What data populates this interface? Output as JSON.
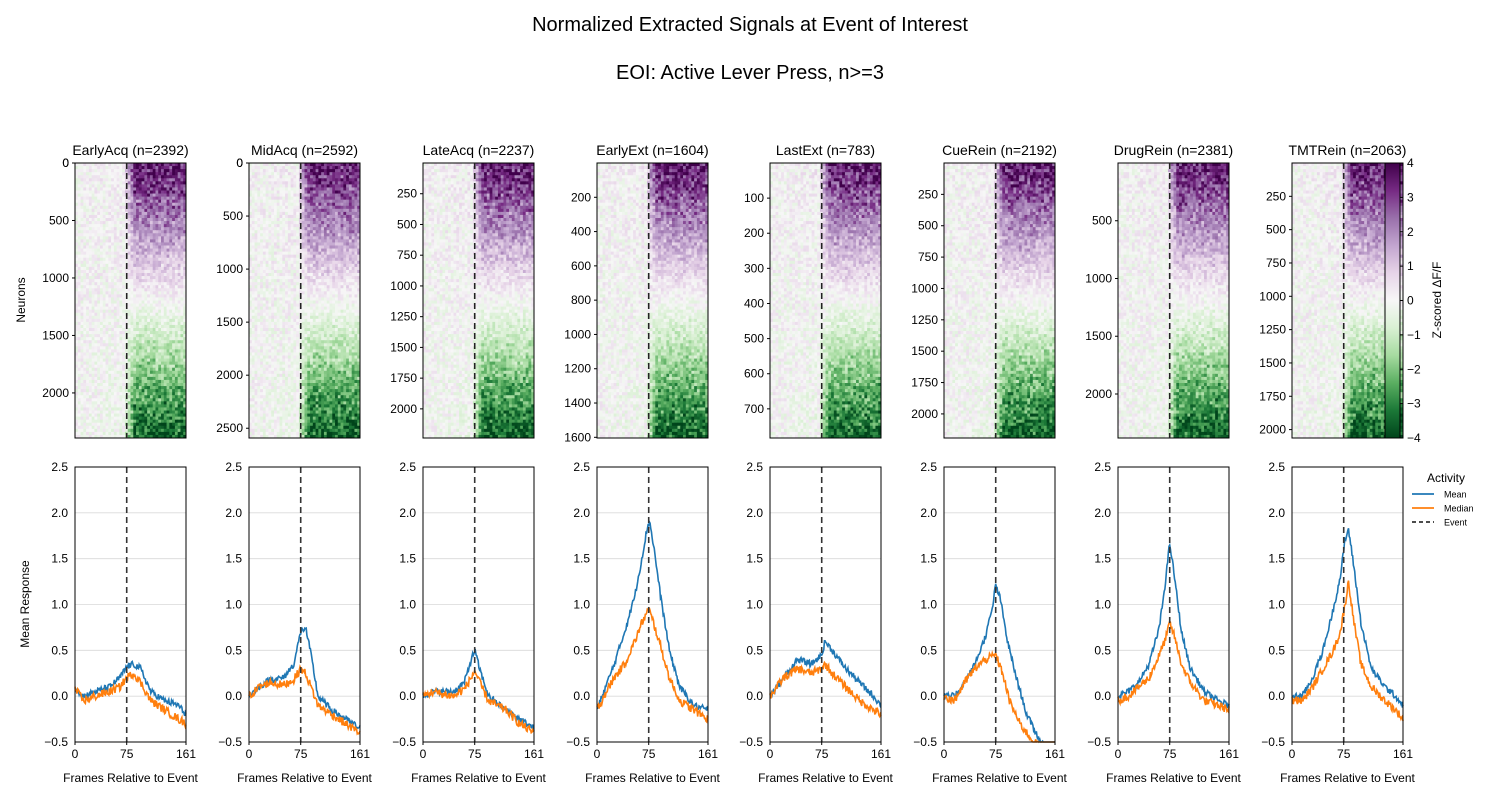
{
  "figure": {
    "title": "Normalized Extracted Signals at Event of Interest",
    "subtitle": "EOI: Active Lever Press, n>=3"
  },
  "chart_data": {
    "type": "heatmap",
    "heatmap": {
      "ylabel": "Neurons",
      "colorbar_label": "Z-scored ΔF/F",
      "colorbar_ticks": [
        "4",
        "3",
        "2",
        "1",
        "0",
        "−1",
        "−2",
        "−3",
        "−4"
      ],
      "color_range": [
        -4,
        4
      ],
      "colormap": [
        "#40004b",
        "#762a83",
        "#9970ab",
        "#c2a5cf",
        "#e7d4e8",
        "#f7f7f7",
        "#d9f0d3",
        "#a6dba0",
        "#5aae61",
        "#1b7837",
        "#00441b"
      ],
      "event_frame": 75,
      "frames": 161
    },
    "line": {
      "xlabel": "Frames Relative to Event",
      "ylabel": "Mean Response",
      "ylim": [
        -0.5,
        2.5
      ],
      "yticks": [
        "2.5",
        "2.0",
        "1.5",
        "1.0",
        "0.5",
        "0.0",
        "−0.5"
      ],
      "xticks": [
        "0",
        "75",
        "161"
      ],
      "xlim": [
        0,
        161
      ],
      "grid": true,
      "legend_title": "Activity",
      "legend_position": "right",
      "legend": [
        {
          "label": "Mean",
          "color": "#1f77b4",
          "style": "solid"
        },
        {
          "label": "Median",
          "color": "#ff7f0e",
          "style": "solid"
        },
        {
          "label": "Event",
          "color": "#333333",
          "style": "dashed"
        }
      ],
      "colors": {
        "mean": "#1f77b4",
        "median": "#ff7f0e",
        "event": "#333333"
      }
    },
    "panels": [
      {
        "title": "EarlyAcq (n=2392)",
        "n": 2392,
        "yticks": [
          "0",
          "500",
          "1000",
          "1500",
          "2000"
        ],
        "ytick_values": [
          0,
          500,
          1000,
          1500,
          2000
        ],
        "mean_kp": [
          [
            0,
            0.1
          ],
          [
            12,
            0.0
          ],
          [
            30,
            0.05
          ],
          [
            50,
            0.1
          ],
          [
            65,
            0.2
          ],
          [
            75,
            0.32
          ],
          [
            85,
            0.35
          ],
          [
            95,
            0.3
          ],
          [
            110,
            0.05
          ],
          [
            130,
            -0.05
          ],
          [
            150,
            -0.1
          ],
          [
            161,
            -0.2
          ]
        ],
        "median_kp": [
          [
            0,
            0.08
          ],
          [
            12,
            -0.05
          ],
          [
            30,
            0.0
          ],
          [
            50,
            0.05
          ],
          [
            65,
            0.1
          ],
          [
            75,
            0.2
          ],
          [
            85,
            0.25
          ],
          [
            95,
            0.15
          ],
          [
            110,
            -0.05
          ],
          [
            130,
            -0.15
          ],
          [
            150,
            -0.25
          ],
          [
            161,
            -0.3
          ]
        ]
      },
      {
        "title": "MidAcq (n=2592)",
        "n": 2592,
        "yticks": [
          "0",
          "500",
          "1000",
          "1500",
          "2000",
          "2500"
        ],
        "ytick_values": [
          0,
          500,
          1000,
          1500,
          2000,
          2500
        ],
        "mean_kp": [
          [
            0,
            0.0
          ],
          [
            15,
            0.1
          ],
          [
            30,
            0.18
          ],
          [
            50,
            0.2
          ],
          [
            65,
            0.35
          ],
          [
            75,
            0.7
          ],
          [
            82,
            0.75
          ],
          [
            90,
            0.45
          ],
          [
            100,
            0.0
          ],
          [
            120,
            -0.15
          ],
          [
            140,
            -0.25
          ],
          [
            161,
            -0.35
          ]
        ],
        "median_kp": [
          [
            0,
            0.0
          ],
          [
            15,
            0.1
          ],
          [
            30,
            0.15
          ],
          [
            50,
            0.12
          ],
          [
            65,
            0.18
          ],
          [
            75,
            0.3
          ],
          [
            82,
            0.25
          ],
          [
            90,
            0.1
          ],
          [
            100,
            -0.1
          ],
          [
            120,
            -0.2
          ],
          [
            140,
            -0.3
          ],
          [
            161,
            -0.4
          ]
        ]
      },
      {
        "title": "LateAcq (n=2237)",
        "n": 2237,
        "yticks": [
          "250",
          "500",
          "750",
          "1000",
          "1250",
          "1500",
          "1750",
          "2000"
        ],
        "ytick_values": [
          250,
          500,
          750,
          1000,
          1250,
          1500,
          1750,
          2000
        ],
        "mean_kp": [
          [
            0,
            0.0
          ],
          [
            15,
            0.05
          ],
          [
            30,
            0.05
          ],
          [
            45,
            0.05
          ],
          [
            60,
            0.15
          ],
          [
            70,
            0.4
          ],
          [
            75,
            0.5
          ],
          [
            82,
            0.3
          ],
          [
            95,
            0.0
          ],
          [
            120,
            -0.15
          ],
          [
            140,
            -0.25
          ],
          [
            161,
            -0.35
          ]
        ],
        "median_kp": [
          [
            0,
            0.0
          ],
          [
            15,
            0.05
          ],
          [
            30,
            0.02
          ],
          [
            45,
            0.0
          ],
          [
            60,
            0.08
          ],
          [
            70,
            0.2
          ],
          [
            75,
            0.28
          ],
          [
            82,
            0.15
          ],
          [
            95,
            -0.05
          ],
          [
            120,
            -0.15
          ],
          [
            140,
            -0.3
          ],
          [
            161,
            -0.4
          ]
        ]
      },
      {
        "title": "EarlyExt (n=1604)",
        "n": 1604,
        "yticks": [
          "200",
          "400",
          "600",
          "800",
          "1000",
          "1200",
          "1400",
          "1600"
        ],
        "ytick_values": [
          200,
          400,
          600,
          800,
          1000,
          1200,
          1400,
          1600
        ],
        "mean_kp": [
          [
            0,
            -0.15
          ],
          [
            10,
            0.05
          ],
          [
            25,
            0.35
          ],
          [
            40,
            0.7
          ],
          [
            55,
            1.1
          ],
          [
            65,
            1.5
          ],
          [
            72,
            1.8
          ],
          [
            76,
            1.92
          ],
          [
            82,
            1.65
          ],
          [
            92,
            1.1
          ],
          [
            105,
            0.5
          ],
          [
            120,
            0.1
          ],
          [
            140,
            -0.1
          ],
          [
            161,
            -0.15
          ]
        ],
        "median_kp": [
          [
            0,
            -0.15
          ],
          [
            10,
            0.0
          ],
          [
            25,
            0.2
          ],
          [
            40,
            0.35
          ],
          [
            55,
            0.6
          ],
          [
            65,
            0.8
          ],
          [
            75,
            0.95
          ],
          [
            82,
            0.8
          ],
          [
            92,
            0.55
          ],
          [
            105,
            0.2
          ],
          [
            120,
            -0.05
          ],
          [
            140,
            -0.15
          ],
          [
            161,
            -0.25
          ]
        ]
      },
      {
        "title": "LastExt (n=783)",
        "n": 783,
        "yticks": [
          "100",
          "200",
          "300",
          "400",
          "500",
          "600",
          "700"
        ],
        "ytick_values": [
          100,
          200,
          300,
          400,
          500,
          600,
          700
        ],
        "mean_kp": [
          [
            0,
            0.0
          ],
          [
            20,
            0.2
          ],
          [
            40,
            0.4
          ],
          [
            60,
            0.35
          ],
          [
            75,
            0.45
          ],
          [
            80,
            0.6
          ],
          [
            90,
            0.5
          ],
          [
            110,
            0.3
          ],
          [
            130,
            0.15
          ],
          [
            150,
            0.0
          ],
          [
            161,
            -0.1
          ]
        ],
        "median_kp": [
          [
            0,
            0.0
          ],
          [
            20,
            0.2
          ],
          [
            40,
            0.3
          ],
          [
            60,
            0.25
          ],
          [
            75,
            0.3
          ],
          [
            80,
            0.35
          ],
          [
            90,
            0.25
          ],
          [
            110,
            0.1
          ],
          [
            130,
            -0.05
          ],
          [
            150,
            -0.15
          ],
          [
            161,
            -0.2
          ]
        ]
      },
      {
        "title": "CueRein (n=2192)",
        "n": 2192,
        "yticks": [
          "250",
          "500",
          "750",
          "1000",
          "1250",
          "1500",
          "1750",
          "2000"
        ],
        "ytick_values": [
          250,
          500,
          750,
          1000,
          1250,
          1500,
          1750,
          2000
        ],
        "mean_kp": [
          [
            0,
            0.0
          ],
          [
            15,
            0.0
          ],
          [
            30,
            0.15
          ],
          [
            45,
            0.35
          ],
          [
            60,
            0.65
          ],
          [
            70,
            0.95
          ],
          [
            75,
            1.22
          ],
          [
            82,
            1.05
          ],
          [
            92,
            0.6
          ],
          [
            105,
            0.2
          ],
          [
            120,
            -0.2
          ],
          [
            140,
            -0.5
          ],
          [
            161,
            -0.6
          ]
        ],
        "median_kp": [
          [
            0,
            0.0
          ],
          [
            15,
            -0.05
          ],
          [
            30,
            0.15
          ],
          [
            45,
            0.3
          ],
          [
            60,
            0.4
          ],
          [
            75,
            0.45
          ],
          [
            85,
            0.25
          ],
          [
            95,
            -0.05
          ],
          [
            110,
            -0.3
          ],
          [
            130,
            -0.5
          ],
          [
            161,
            -0.65
          ]
        ]
      },
      {
        "title": "DrugRein (n=2381)",
        "n": 2381,
        "yticks": [
          "500",
          "1000",
          "1500",
          "2000"
        ],
        "ytick_values": [
          500,
          1000,
          1500,
          2000
        ],
        "mean_kp": [
          [
            0,
            0.0
          ],
          [
            15,
            0.05
          ],
          [
            30,
            0.15
          ],
          [
            45,
            0.35
          ],
          [
            60,
            0.75
          ],
          [
            68,
            1.2
          ],
          [
            75,
            1.67
          ],
          [
            82,
            1.3
          ],
          [
            92,
            0.7
          ],
          [
            105,
            0.3
          ],
          [
            125,
            0.05
          ],
          [
            145,
            -0.05
          ],
          [
            161,
            -0.1
          ]
        ],
        "median_kp": [
          [
            0,
            -0.05
          ],
          [
            15,
            0.0
          ],
          [
            30,
            0.1
          ],
          [
            45,
            0.2
          ],
          [
            60,
            0.45
          ],
          [
            70,
            0.65
          ],
          [
            75,
            0.8
          ],
          [
            82,
            0.65
          ],
          [
            92,
            0.35
          ],
          [
            105,
            0.15
          ],
          [
            125,
            -0.05
          ],
          [
            145,
            -0.1
          ],
          [
            161,
            -0.15
          ]
        ]
      },
      {
        "title": "TMTRein (n=2063)",
        "n": 2063,
        "yticks": [
          "250",
          "500",
          "750",
          "1000",
          "1250",
          "1500",
          "1750",
          "2000"
        ],
        "ytick_values": [
          250,
          500,
          750,
          1000,
          1250,
          1500,
          1750,
          2000
        ],
        "mean_kp": [
          [
            0,
            0.0
          ],
          [
            15,
            0.0
          ],
          [
            30,
            0.2
          ],
          [
            45,
            0.5
          ],
          [
            60,
            0.95
          ],
          [
            70,
            1.3
          ],
          [
            77,
            1.7
          ],
          [
            82,
            1.82
          ],
          [
            90,
            1.4
          ],
          [
            100,
            0.8
          ],
          [
            115,
            0.3
          ],
          [
            135,
            0.1
          ],
          [
            150,
            0.0
          ],
          [
            161,
            -0.1
          ]
        ],
        "median_kp": [
          [
            0,
            -0.05
          ],
          [
            15,
            -0.05
          ],
          [
            30,
            0.1
          ],
          [
            45,
            0.3
          ],
          [
            60,
            0.5
          ],
          [
            70,
            0.7
          ],
          [
            77,
            1.0
          ],
          [
            82,
            1.25
          ],
          [
            90,
            0.8
          ],
          [
            100,
            0.35
          ],
          [
            115,
            0.1
          ],
          [
            135,
            -0.05
          ],
          [
            150,
            -0.15
          ],
          [
            161,
            -0.25
          ]
        ]
      }
    ]
  }
}
